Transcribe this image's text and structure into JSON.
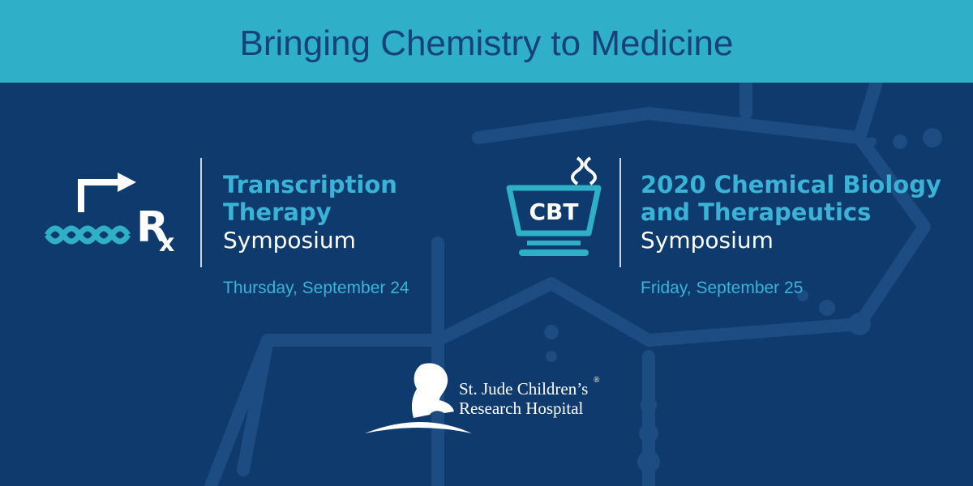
{
  "header": {
    "title": "Bringing Chemistry to Medicine"
  },
  "events": [
    {
      "icon_text": [
        "R",
        "x"
      ],
      "title_lines": [
        "Transcription",
        "Therapy"
      ],
      "subtitle": "Symposium",
      "date": "Thursday, September 24"
    },
    {
      "icon_text": [
        "CBT"
      ],
      "title_lines": [
        "2020 Chemical Biology",
        "and Therapeutics"
      ],
      "subtitle": "Symposium",
      "date": "Friday, September 25"
    }
  ],
  "logo": {
    "lines": [
      "St. Jude Children’s",
      "Research Hospital"
    ],
    "mark": "®"
  }
}
